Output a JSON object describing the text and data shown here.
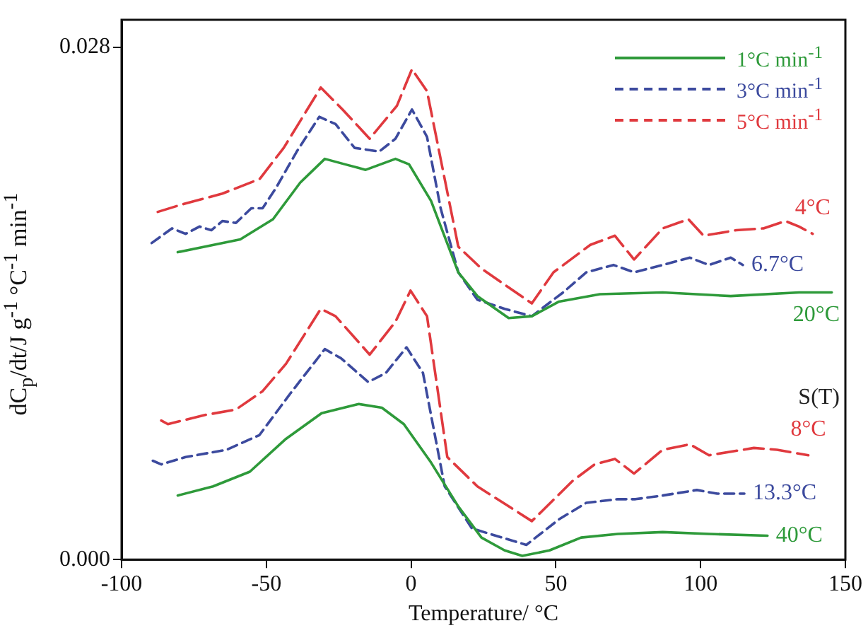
{
  "chart_data": {
    "type": "line",
    "xlabel": "Temperature/ °C",
    "ylabel": "dC$_{p}$/dt/J g$^{-1}$ °C$^{-1}$ min$^{-1}$",
    "xlim": [
      -100,
      150
    ],
    "ylim": [
      0,
      0.0295
    ],
    "xticks": [
      -100,
      -50,
      0,
      50,
      100,
      150
    ],
    "yticks": [
      {
        "value": 0,
        "label": "0.000"
      },
      {
        "value": 0.028,
        "label": "0.028"
      }
    ],
    "grid": false,
    "legend": "top right",
    "marker": "none",
    "series": [
      {
        "name": "1°C min$^{-1}$",
        "color": "#2e9a3a",
        "line_style": "solid",
        "x": [
          -80.6,
          -71.2,
          -59,
          -47.7,
          -38.3,
          -29.8,
          -22.8,
          -15.7,
          -5.4,
          -0.7,
          6.9,
          16.3,
          22.9,
          33.7,
          41.7,
          51.1,
          65.2,
          86.9,
          110.4,
          134,
          145.3
        ],
        "values": [
          0.0168,
          0.0171,
          0.0175,
          0.0186,
          0.0206,
          0.0219,
          0.0216,
          0.0213,
          0.0219,
          0.0216,
          0.0196,
          0.0157,
          0.0144,
          0.0132,
          0.0133,
          0.0141,
          0.0145,
          0.0146,
          0.0144,
          0.0146,
          0.0146
        ]
      },
      {
        "name": "3°C min$^{-1}$",
        "color": "#3c4a9e",
        "line_style": "dashed",
        "x": [
          -89.6,
          -82.6,
          -77.9,
          -73.1,
          -69,
          -65.2,
          -60.5,
          -55.2,
          -51.3,
          -46.7,
          -39.5,
          -31.7,
          -26.1,
          -19.5,
          -11,
          -5.4,
          0.3,
          5.5,
          10.2,
          16.3,
          22.9,
          32.3,
          41.7,
          52.5,
          60.5,
          69.9,
          77,
          86.9,
          96.3,
          102.9,
          110.4,
          114.6
        ],
        "values": [
          0.0173,
          0.0181,
          0.0178,
          0.0182,
          0.018,
          0.0185,
          0.0184,
          0.0192,
          0.0192,
          0.0203,
          0.0223,
          0.0242,
          0.0238,
          0.0225,
          0.0223,
          0.023,
          0.0246,
          0.0231,
          0.0192,
          0.0157,
          0.0142,
          0.0137,
          0.0133,
          0.0146,
          0.0157,
          0.0161,
          0.0157,
          0.0161,
          0.0165,
          0.0161,
          0.0165,
          0.0161
        ]
      },
      {
        "name": "5°C min$^{-1}$",
        "color": "#e0393e",
        "line_style": "long-dashed",
        "x": [
          -87.5,
          -79.3,
          -65.2,
          -52.3,
          -44,
          -31.2,
          -23.7,
          -14.3,
          -4.9,
          0.3,
          5.5,
          16.3,
          24.3,
          41.7,
          49.2,
          61.9,
          70.4,
          77,
          86.9,
          95.8,
          101,
          112.3,
          121.7,
          129.3,
          134,
          138.7
        ],
        "values": [
          0.019,
          0.0194,
          0.02,
          0.0208,
          0.0225,
          0.0258,
          0.0246,
          0.023,
          0.0248,
          0.0268,
          0.0256,
          0.0171,
          0.0159,
          0.014,
          0.0157,
          0.0172,
          0.0177,
          0.0164,
          0.0181,
          0.0186,
          0.0177,
          0.018,
          0.0181,
          0.0185,
          0.0182,
          0.0178
        ]
      },
      {
        "color": "#2e9a3a",
        "line_style": "solid",
        "x": [
          -80.6,
          -68.4,
          -55.7,
          -43.2,
          -30.9,
          -18.1,
          -10.1,
          -2.5,
          6.9,
          16.3,
          24.3,
          32.3,
          38.4,
          47.8,
          58.7,
          71.4,
          86.9,
          102.9,
          123.1
        ],
        "values": [
          0.0035,
          0.004,
          0.0048,
          0.0066,
          0.008,
          0.0085,
          0.0083,
          0.0074,
          0.0053,
          0.0029,
          0.0012,
          0.0005,
          0.0002,
          0.0005,
          0.0012,
          0.0014,
          0.0015,
          0.0014,
          0.0013
        ]
      },
      {
        "color": "#3c4a9e",
        "line_style": "dashed",
        "x": [
          -89.2,
          -86.3,
          -77.9,
          -63.7,
          -52.4,
          -41.6,
          -29.8,
          -24.2,
          -14.8,
          -8.7,
          -1.6,
          4.1,
          11.6,
          21,
          39.8,
          51.1,
          60.5,
          71.4,
          77.5,
          86.9,
          98.7,
          105.7,
          115.1
        ],
        "values": [
          0.0054,
          0.0052,
          0.0056,
          0.006,
          0.0068,
          0.0091,
          0.0115,
          0.011,
          0.0097,
          0.0102,
          0.0116,
          0.0102,
          0.004,
          0.0017,
          0.0008,
          0.0022,
          0.0031,
          0.0033,
          0.0033,
          0.0035,
          0.0038,
          0.0036,
          0.0036
        ]
      },
      {
        "color": "#e0393e",
        "line_style": "long-dashed",
        "x": [
          -86.3,
          -84,
          -71.2,
          -60.5,
          -51.3,
          -43.2,
          -31.2,
          -26.1,
          -14.3,
          -5.4,
          -0.2,
          5.5,
          12.5,
          22.9,
          41.7,
          55.8,
          63.4,
          70.4,
          77,
          86.9,
          96.3,
          102.9,
          118.4,
          126.4,
          137.2
        ],
        "values": [
          0.0076,
          0.0074,
          0.0079,
          0.0082,
          0.0092,
          0.0107,
          0.0137,
          0.0133,
          0.0112,
          0.013,
          0.0147,
          0.0133,
          0.0056,
          0.004,
          0.0021,
          0.0043,
          0.0052,
          0.0055,
          0.0047,
          0.006,
          0.0063,
          0.0057,
          0.0061,
          0.006,
          0.0057
        ]
      }
    ],
    "annotations": [
      {
        "text": "4°C",
        "x": 138.7,
        "y": 0.0178
      },
      {
        "text": "6.7°C",
        "x": 114.6,
        "y": 0.0161
      },
      {
        "text": "20°C",
        "x": 145.3,
        "y": 0.0146
      },
      "S(T)",
      {
        "text": "8°C",
        "x": 137.2,
        "y": 0.0057
      },
      {
        "text": "13.3°C",
        "x": 115.1,
        "y": 0.0036
      },
      {
        "text": "40°C",
        "x": 123.1,
        "y": 0.0013
      }
    ]
  }
}
